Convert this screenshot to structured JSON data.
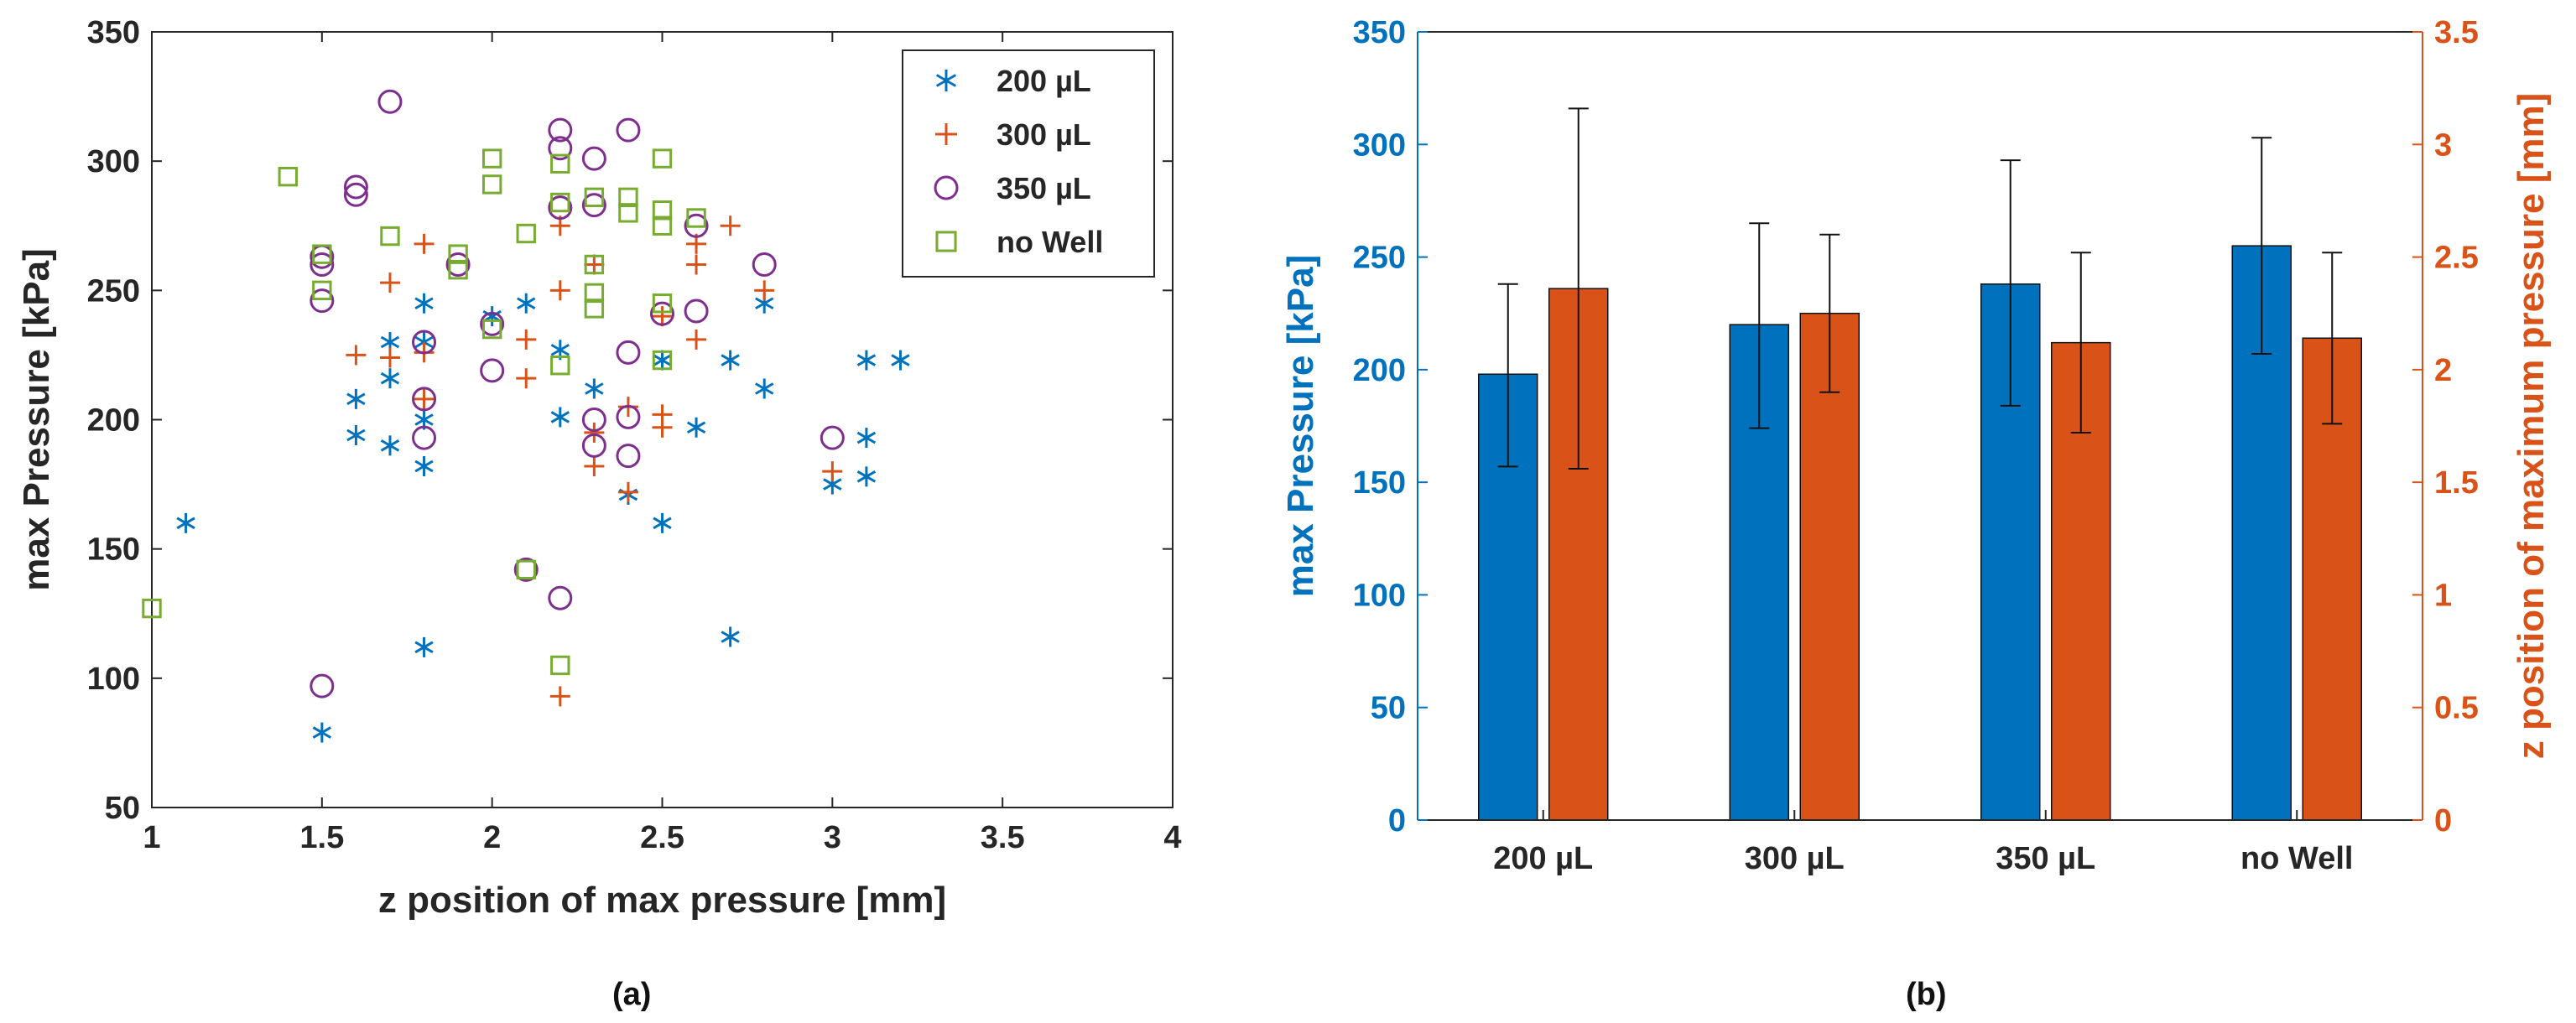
{
  "chart_data": [
    {
      "type": "scatter",
      "panel_label": "(a)",
      "xlabel": "z position of max pressure [mm]",
      "ylabel": "max Pressure [kPa]",
      "xlim": [
        1,
        4
      ],
      "ylim": [
        50,
        350
      ],
      "xticks": [
        1,
        1.5,
        2,
        2.5,
        3,
        3.5,
        4
      ],
      "xtick_labels": [
        "1",
        "1.5",
        "2",
        "2.5",
        "3",
        "3.5",
        "4"
      ],
      "yticks": [
        50,
        100,
        150,
        200,
        250,
        300,
        350
      ],
      "ytick_labels": [
        "50",
        "100",
        "150",
        "200",
        "250",
        "300",
        "350"
      ],
      "legend_position": "top-right",
      "series": [
        {
          "name": "200 µL",
          "marker": "asterisk",
          "color": "#0072BD",
          "x": [
            1.1,
            1.5,
            1.6,
            1.6,
            1.7,
            1.7,
            1.7,
            1.8,
            1.8,
            1.8,
            1.8,
            1.8,
            2.0,
            2.1,
            2.2,
            2.2,
            2.3,
            2.4,
            2.5,
            2.5,
            2.6,
            2.7,
            2.7,
            2.8,
            2.8,
            3.0,
            3.1,
            3.1,
            3.1,
            3.2
          ],
          "y": [
            160,
            79,
            208,
            194,
            216,
            190,
            230,
            245,
            200,
            182,
            112,
            230,
            240,
            245,
            227,
            201,
            212,
            171,
            223,
            160,
            197,
            223,
            116,
            245,
            212,
            175,
            223,
            193,
            178,
            223
          ]
        },
        {
          "name": "300 µL",
          "marker": "plus",
          "color": "#D95319",
          "x": [
            1.6,
            1.7,
            1.7,
            1.8,
            1.8,
            1.8,
            2.1,
            2.1,
            2.2,
            2.2,
            2.2,
            2.3,
            2.3,
            2.3,
            2.4,
            2.4,
            2.5,
            2.5,
            2.5,
            2.6,
            2.6,
            2.6,
            2.7,
            2.8,
            3.0
          ],
          "y": [
            225,
            253,
            224,
            268,
            226,
            208,
            231,
            216,
            250,
            275,
            93,
            260,
            195,
            182,
            205,
            172,
            240,
            202,
            197,
            268,
            260,
            231,
            275,
            250,
            180
          ]
        },
        {
          "name": "350 µL",
          "marker": "circle",
          "color": "#7E2F8E",
          "x": [
            1.5,
            1.5,
            1.5,
            1.5,
            1.6,
            1.6,
            1.7,
            1.8,
            1.8,
            1.8,
            1.9,
            2.0,
            2.0,
            2.1,
            2.2,
            2.2,
            2.2,
            2.2,
            2.3,
            2.3,
            2.3,
            2.3,
            2.4,
            2.4,
            2.4,
            2.4,
            2.5,
            2.6,
            2.6,
            2.8,
            3.0
          ],
          "y": [
            263,
            260,
            246,
            97,
            290,
            287,
            323,
            230,
            208,
            193,
            260,
            237,
            219,
            142,
            312,
            305,
            282,
            131,
            301,
            283,
            200,
            190,
            312,
            226,
            201,
            186,
            241,
            275,
            242,
            260,
            193
          ]
        },
        {
          "name": "no Well",
          "marker": "square",
          "color": "#77AC30",
          "x": [
            1.0,
            1.4,
            1.5,
            1.5,
            1.7,
            1.9,
            1.9,
            2.0,
            2.0,
            2.0,
            2.1,
            2.1,
            2.2,
            2.2,
            2.2,
            2.2,
            2.3,
            2.3,
            2.3,
            2.3,
            2.4,
            2.4,
            2.5,
            2.5,
            2.5,
            2.5,
            2.5,
            2.6
          ],
          "y": [
            127,
            294,
            264,
            250,
            271,
            264,
            258,
            301,
            291,
            235,
            272,
            142,
            299,
            284,
            221,
            105,
            286,
            260,
            249,
            243,
            286,
            280,
            301,
            281,
            275,
            245,
            223,
            278
          ]
        }
      ]
    },
    {
      "type": "bar",
      "panel_label": "(b)",
      "categories": [
        "200 µL",
        "300 µL",
        "350 µL",
        "no Well"
      ],
      "ylabel_left": "max Pressure [kPa]",
      "ylabel_right": "z position of maximum pressure [mm]",
      "ylim_left": [
        0,
        350
      ],
      "ylim_right": [
        0,
        3.5
      ],
      "yticks_left": [
        0,
        50,
        100,
        150,
        200,
        250,
        300,
        350
      ],
      "ytick_labels_left": [
        "0",
        "50",
        "100",
        "150",
        "200",
        "250",
        "300",
        "350"
      ],
      "yticks_right": [
        0,
        0.5,
        1,
        1.5,
        2,
        2.5,
        3,
        3.5
      ],
      "ytick_labels_right": [
        "0",
        "0.5",
        "1",
        "1.5",
        "2",
        "2.5",
        "3",
        "3.5"
      ],
      "left_color": "#0072BD",
      "right_color": "#D95319",
      "series": [
        {
          "name": "max Pressure",
          "axis": "left",
          "color": "#0072BD",
          "values": [
            198,
            220,
            238,
            255
          ],
          "error_low": [
            157,
            174,
            184,
            207
          ],
          "error_high": [
            238,
            265,
            293,
            303
          ]
        },
        {
          "name": "z position of maximum pressure",
          "axis": "right",
          "color": "#D95319",
          "values": [
            2.36,
            2.25,
            2.12,
            2.14
          ],
          "error_low": [
            1.56,
            1.9,
            1.72,
            1.76
          ],
          "error_high": [
            3.16,
            2.6,
            2.52,
            2.52
          ]
        }
      ]
    }
  ]
}
